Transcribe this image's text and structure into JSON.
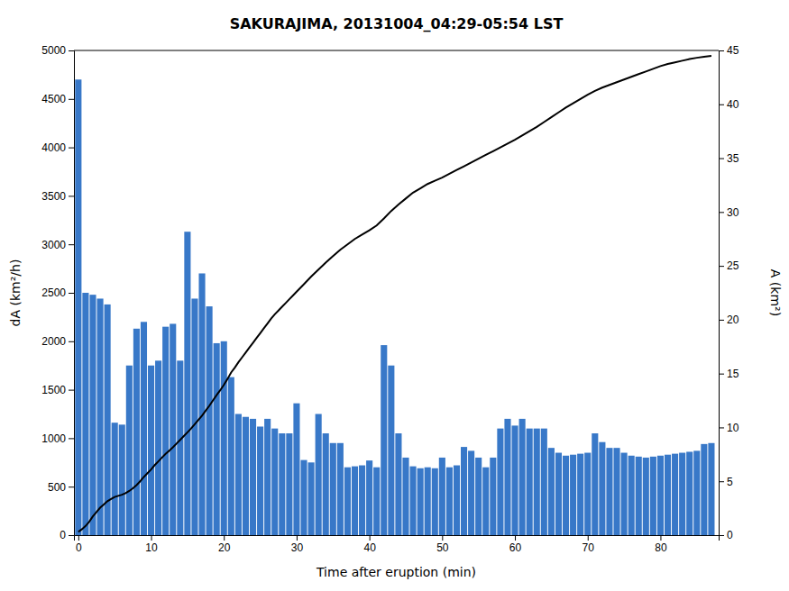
{
  "chart_data": {
    "type": "bar",
    "title": "SAKURAJIMA, 20131004_04:29-05:54 LST",
    "xlabel": "Time after eruption (min)",
    "ylabel": "dA (km²/h)",
    "y2label": "A (km²)",
    "xlim": [
      -0.6,
      88
    ],
    "xticks": [
      0,
      10,
      20,
      30,
      40,
      50,
      60,
      70,
      80
    ],
    "ylim": [
      0,
      5000
    ],
    "yticks": [
      0,
      500,
      1000,
      1500,
      2000,
      2500,
      3000,
      3500,
      4000,
      4500,
      5000
    ],
    "y2lim": [
      0,
      45
    ],
    "y2ticks": [
      0,
      5,
      10,
      15,
      20,
      25,
      30,
      35,
      40,
      45
    ],
    "grid": false,
    "series": [
      {
        "type": "bar",
        "color": "#3878c8",
        "x": [
          0,
          1,
          2,
          3,
          4,
          5,
          6,
          7,
          8,
          9,
          10,
          11,
          12,
          13,
          14,
          15,
          16,
          17,
          18,
          19,
          20,
          21,
          22,
          23,
          24,
          25,
          26,
          27,
          28,
          29,
          30,
          31,
          32,
          33,
          34,
          35,
          36,
          37,
          38,
          39,
          40,
          41,
          42,
          43,
          44,
          45,
          46,
          47,
          48,
          49,
          50,
          51,
          52,
          53,
          54,
          55,
          56,
          57,
          58,
          59,
          60,
          61,
          62,
          63,
          64,
          65,
          66,
          67,
          68,
          69,
          70,
          71,
          72,
          73,
          74,
          75,
          76,
          77,
          78,
          79,
          80,
          81,
          82,
          83,
          84,
          85,
          86,
          87
        ],
        "values": [
          4700,
          2500,
          2480,
          2440,
          2380,
          1160,
          1140,
          1750,
          2130,
          2200,
          1750,
          1800,
          2150,
          2180,
          1800,
          3130,
          2440,
          2700,
          2360,
          1980,
          2000,
          1630,
          1250,
          1220,
          1200,
          1120,
          1200,
          1100,
          1050,
          1050,
          1360,
          775,
          750,
          1250,
          1050,
          950,
          950,
          700,
          710,
          720,
          770,
          700,
          1960,
          1750,
          1050,
          800,
          710,
          690,
          700,
          690,
          800,
          700,
          720,
          910,
          870,
          800,
          700,
          800,
          1100,
          1200,
          1130,
          1200,
          1100,
          1100,
          1100,
          900,
          850,
          820,
          830,
          840,
          850,
          1050,
          960,
          900,
          900,
          850,
          820,
          810,
          800,
          810,
          820,
          830,
          840,
          850,
          860,
          870,
          940,
          950
        ]
      },
      {
        "type": "line",
        "color": "#000000",
        "axis": "y2",
        "x": [
          0.0,
          0.5,
          1.0,
          1.5,
          2.0,
          2.5,
          3.0,
          3.5,
          4.0,
          4.5,
          5.0,
          5.5,
          6.0,
          6.5,
          7.0,
          7.5,
          8.0,
          8.5,
          9.0,
          9.5,
          10.0,
          10.5,
          11.0,
          11.5,
          12.0,
          12.5,
          13.0,
          13.5,
          14.0,
          14.5,
          15.0,
          15.5,
          16.0,
          16.5,
          17.0,
          17.5,
          18.0,
          18.5,
          19.0,
          19.5,
          20.0,
          20.5,
          21.0,
          21.5,
          22.0,
          22.5,
          23.0,
          23.5,
          24.0,
          24.5,
          25.0,
          25.5,
          26.0,
          26.5,
          27.0,
          27.5,
          28.0,
          28.5,
          29.0,
          29.5,
          30.0,
          31.0,
          32.0,
          33.0,
          34.0,
          35.0,
          36.0,
          37.0,
          38.0,
          39.0,
          40.0,
          41.0,
          42.0,
          43.0,
          44.0,
          45.0,
          46.0,
          47.0,
          48.0,
          49.0,
          50.0,
          51.0,
          52.0,
          53.0,
          54.0,
          55.0,
          56.0,
          57.0,
          58.0,
          59.0,
          60.0,
          61.0,
          62.0,
          63.0,
          64.0,
          65.0,
          66.0,
          67.0,
          68.0,
          69.0,
          70.0,
          71.0,
          72.0,
          73.0,
          74.0,
          75.0,
          76.0,
          77.0,
          78.0,
          79.0,
          80.0,
          81.0,
          82.0,
          83.0,
          84.0,
          85.0,
          86.0,
          87.0
        ],
        "values": [
          0.3,
          0.55,
          0.85,
          1.25,
          1.75,
          2.15,
          2.55,
          2.85,
          3.15,
          3.35,
          3.55,
          3.65,
          3.75,
          3.9,
          4.1,
          4.35,
          4.65,
          5.0,
          5.4,
          5.75,
          6.1,
          6.5,
          6.85,
          7.2,
          7.55,
          7.85,
          8.15,
          8.5,
          8.85,
          9.2,
          9.55,
          9.9,
          10.3,
          10.7,
          11.1,
          11.55,
          12.0,
          12.5,
          13.0,
          13.45,
          13.95,
          14.5,
          15.1,
          15.55,
          16.05,
          16.5,
          16.95,
          17.4,
          17.85,
          18.3,
          18.75,
          19.2,
          19.65,
          20.1,
          20.5,
          20.85,
          21.2,
          21.55,
          21.9,
          22.25,
          22.6,
          23.3,
          24.0,
          24.65,
          25.3,
          25.9,
          26.5,
          27.0,
          27.5,
          27.9,
          28.3,
          28.75,
          29.4,
          30.1,
          30.7,
          31.25,
          31.8,
          32.2,
          32.6,
          32.9,
          33.2,
          33.55,
          33.9,
          34.25,
          34.6,
          34.95,
          35.3,
          35.65,
          36.0,
          36.35,
          36.7,
          37.1,
          37.5,
          37.9,
          38.35,
          38.8,
          39.25,
          39.7,
          40.1,
          40.5,
          40.9,
          41.25,
          41.55,
          41.8,
          42.05,
          42.3,
          42.55,
          42.8,
          43.05,
          43.3,
          43.55,
          43.75,
          43.9,
          44.05,
          44.2,
          44.32,
          44.42,
          44.5
        ]
      }
    ]
  }
}
